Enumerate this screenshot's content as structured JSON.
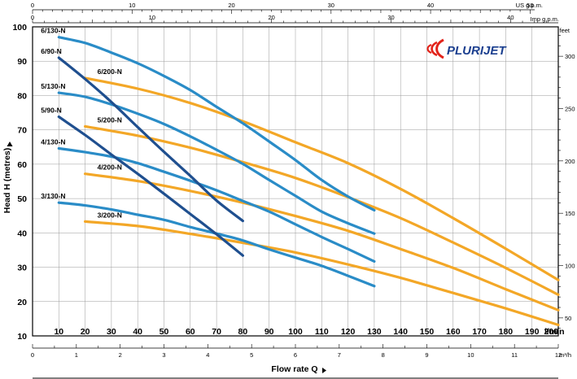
{
  "brand": {
    "name": "PLURIJET"
  },
  "chart_data": {
    "type": "line",
    "xlabel": "Flow rate Q",
    "x_unit": "l/min",
    "ylabel": "Head H  (metres)",
    "xlim": [
      0,
      200
    ],
    "ylim": [
      10,
      100
    ],
    "x_ticks": [
      10,
      20,
      30,
      40,
      50,
      60,
      70,
      80,
      90,
      100,
      110,
      120,
      130,
      140,
      150,
      160,
      170,
      180,
      190,
      200
    ],
    "y_ticks": [
      10,
      20,
      30,
      40,
      50,
      60,
      70,
      80,
      90,
      100
    ],
    "secondary_axes": {
      "us_gpm": {
        "label": "US g.p.m.",
        "ticks": [
          0,
          10,
          20,
          30,
          40,
          50
        ]
      },
      "imp_gpm": {
        "label": "Imp g.p.m.",
        "ticks": [
          0,
          10,
          20,
          30,
          40
        ]
      },
      "m3h": {
        "label": "m³/h",
        "ticks": [
          0,
          1,
          2,
          3,
          4,
          5,
          6,
          7,
          8,
          9,
          10,
          11,
          12
        ]
      },
      "feet": {
        "label": "feet",
        "ticks": [
          50,
          100,
          150,
          200,
          250,
          300
        ]
      }
    },
    "series": [
      {
        "name": "6/90-N",
        "color": "#1f4f8f",
        "x": [
          10,
          20,
          30,
          40,
          50,
          60,
          70,
          80
        ],
        "y": [
          91,
          84.8,
          78.1,
          70.8,
          63.6,
          56.6,
          49.4,
          43.5
        ]
      },
      {
        "name": "5/90-N",
        "color": "#1f4f8f",
        "x": [
          10,
          20,
          30,
          40,
          50,
          60,
          70,
          80
        ],
        "y": [
          73.8,
          68.5,
          62.8,
          57.2,
          51.4,
          45.5,
          39.6,
          33.4
        ]
      },
      {
        "name": "6/130-N",
        "color": "#2a8cc7",
        "x": [
          10,
          20,
          30,
          40,
          50,
          60,
          70,
          80,
          90,
          100,
          110,
          120,
          130
        ],
        "y": [
          97,
          95.3,
          92.5,
          89.4,
          85.7,
          81.6,
          76.7,
          71.9,
          66.6,
          61.2,
          55.4,
          50.6,
          46.6
        ]
      },
      {
        "name": "5/130-N",
        "color": "#2a8cc7",
        "x": [
          10,
          20,
          30,
          40,
          50,
          60,
          70,
          80,
          90,
          100,
          110,
          120,
          130
        ],
        "y": [
          80.8,
          79.6,
          77.4,
          74.7,
          71.7,
          68.1,
          64.2,
          60.1,
          55.4,
          50.8,
          46.2,
          42.8,
          39.8
        ]
      },
      {
        "name": "4/130-N",
        "color": "#2a8cc7",
        "x": [
          10,
          20,
          30,
          40,
          50,
          60,
          70,
          80,
          90,
          100,
          110,
          120,
          130
        ],
        "y": [
          64.6,
          63.5,
          62.2,
          60.3,
          57.8,
          55.2,
          52.4,
          49.3,
          46.2,
          42.5,
          38.8,
          35.3,
          31.7
        ]
      },
      {
        "name": "3/130-N",
        "color": "#2a8cc7",
        "x": [
          10,
          20,
          30,
          40,
          50,
          60,
          70,
          80,
          90,
          100,
          110,
          120,
          130
        ],
        "y": [
          48.8,
          48,
          46.8,
          45.3,
          43.8,
          41.7,
          39.8,
          37.8,
          35.2,
          32.8,
          30.4,
          27.5,
          24.5
        ]
      },
      {
        "name": "6/200-N",
        "color": "#f3a727",
        "x": [
          20,
          40,
          60,
          80,
          100,
          120,
          140,
          160,
          180,
          200
        ],
        "y": [
          85.1,
          82,
          77.8,
          72.5,
          66.4,
          60.3,
          52.8,
          44.3,
          35.4,
          26.3
        ]
      },
      {
        "name": "5/200-N",
        "color": "#f3a727",
        "x": [
          20,
          40,
          60,
          80,
          100,
          120,
          140,
          160,
          180,
          200
        ],
        "y": [
          71,
          68.3,
          64.8,
          60.6,
          56,
          50.4,
          44.3,
          37.2,
          29.8,
          22
        ]
      },
      {
        "name": "4/200-N",
        "color": "#f3a727",
        "x": [
          20,
          40,
          60,
          80,
          100,
          120,
          140,
          160,
          180,
          200
        ],
        "y": [
          57.2,
          55.1,
          52.2,
          48.8,
          44.9,
          40.6,
          35.3,
          29.8,
          23.6,
          17.5
        ]
      },
      {
        "name": "3/200-N",
        "color": "#f3a727",
        "x": [
          20,
          40,
          60,
          80,
          100,
          120,
          140,
          160,
          180,
          200
        ],
        "y": [
          43.3,
          42,
          39.7,
          37.1,
          34.3,
          30.8,
          26.9,
          22.5,
          18,
          13.2
        ]
      }
    ]
  }
}
